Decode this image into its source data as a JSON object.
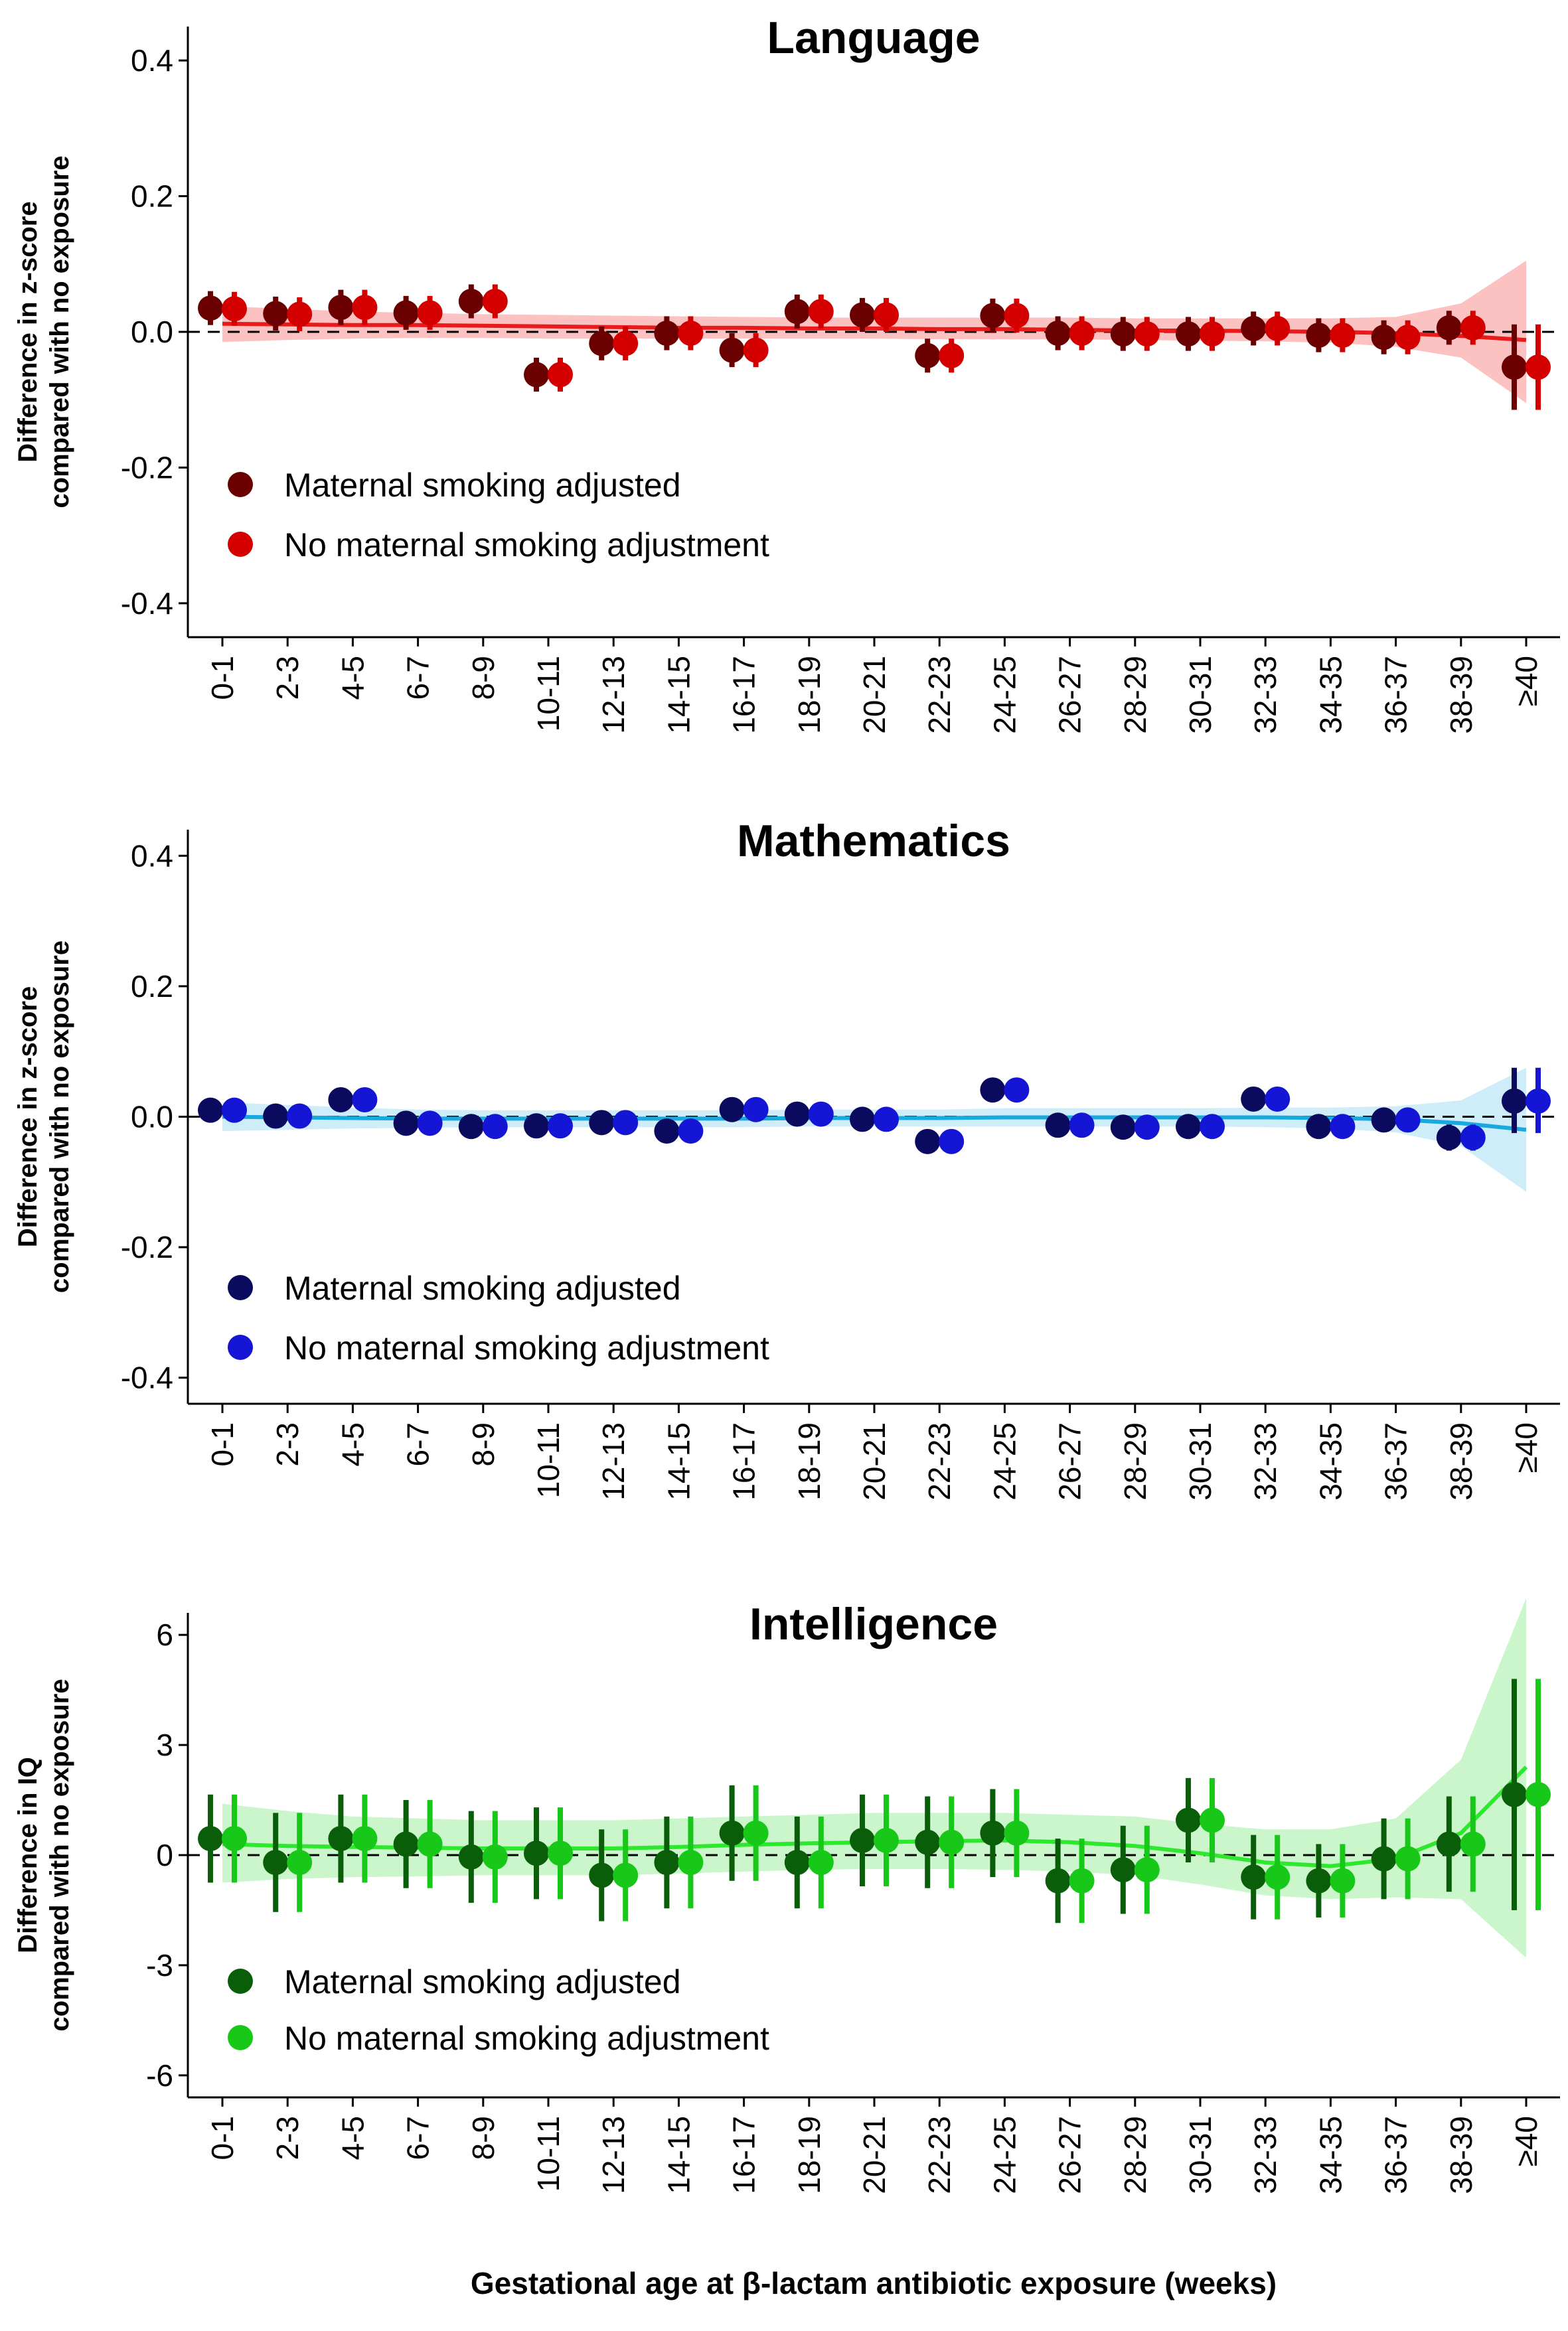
{
  "figure": {
    "xlabel": "Gestational age at β-lactam antibiotic exposure (weeks)"
  },
  "chart_data": [
    {
      "type": "scatter",
      "title": "Language",
      "ylabel_lines": [
        "Difference in z-score",
        "compared with no exposure"
      ],
      "ylim": [
        -0.45,
        0.45
      ],
      "yticks": [
        0.4,
        0.2,
        0.0,
        -0.2,
        -0.4
      ],
      "ytick_labels": [
        "0.4",
        "0.2",
        "0.0",
        "-0.2",
        "-0.4"
      ],
      "categories": [
        "0-1",
        "2-3",
        "4-5",
        "6-7",
        "8-9",
        "10-11",
        "12-13",
        "14-15",
        "16-17",
        "18-19",
        "20-21",
        "22-23",
        "24-25",
        "26-27",
        "28-29",
        "30-31",
        "32-33",
        "34-35",
        "36-37",
        "38-39",
        "≥40"
      ],
      "reference_line": 0,
      "legend_position": "bottom-left",
      "colors": {
        "adjusted": "#6b0000",
        "unadjusted": "#d40000",
        "smooth": "#e81a1a",
        "band": "#fbb7b7"
      },
      "series": [
        {
          "name": "Maternal smoking adjusted",
          "values": [
            0.035,
            0.027,
            0.036,
            0.028,
            0.045,
            -0.063,
            -0.017,
            -0.002,
            -0.027,
            0.03,
            0.025,
            -0.035,
            0.024,
            -0.002,
            -0.003,
            -0.003,
            0.005,
            -0.005,
            -0.008,
            0.006,
            -0.052
          ],
          "lower": [
            0.01,
            0.002,
            0.01,
            0.003,
            0.02,
            -0.088,
            -0.042,
            -0.027,
            -0.052,
            0.005,
            0.0,
            -0.06,
            -0.001,
            -0.027,
            -0.028,
            -0.028,
            -0.02,
            -0.03,
            -0.033,
            -0.019,
            -0.115
          ],
          "upper": [
            0.06,
            0.052,
            0.062,
            0.053,
            0.07,
            -0.038,
            0.008,
            0.023,
            -0.002,
            0.055,
            0.05,
            -0.01,
            0.049,
            0.023,
            0.022,
            0.022,
            0.03,
            0.02,
            0.017,
            0.031,
            0.011
          ]
        },
        {
          "name": "No maternal smoking adjustment",
          "values": [
            0.034,
            0.026,
            0.036,
            0.028,
            0.045,
            -0.063,
            -0.017,
            -0.002,
            -0.027,
            0.03,
            0.025,
            -0.035,
            0.024,
            -0.002,
            -0.003,
            -0.003,
            0.005,
            -0.005,
            -0.008,
            0.006,
            -0.052
          ],
          "lower": [
            0.009,
            0.001,
            0.01,
            0.003,
            0.02,
            -0.088,
            -0.042,
            -0.027,
            -0.052,
            0.005,
            0.0,
            -0.06,
            -0.001,
            -0.027,
            -0.028,
            -0.028,
            -0.02,
            -0.03,
            -0.033,
            -0.019,
            -0.115
          ],
          "upper": [
            0.059,
            0.051,
            0.062,
            0.053,
            0.07,
            -0.038,
            0.008,
            0.023,
            -0.002,
            0.055,
            0.05,
            -0.01,
            0.049,
            0.023,
            0.022,
            0.022,
            0.03,
            0.02,
            0.017,
            0.031,
            0.011
          ]
        }
      ],
      "smooth": {
        "x": [
          0,
          2,
          4,
          6,
          8,
          10,
          12,
          14,
          16,
          18,
          20,
          22,
          24,
          26,
          28,
          30,
          32,
          34,
          36,
          38,
          40
        ],
        "y": [
          0.012,
          0.011,
          0.01,
          0.01,
          0.009,
          0.008,
          0.007,
          0.006,
          0.006,
          0.005,
          0.005,
          0.004,
          0.004,
          0.003,
          0.002,
          0.002,
          0.001,
          0.0,
          -0.002,
          -0.006,
          -0.012
        ],
        "lower": [
          -0.015,
          -0.012,
          -0.01,
          -0.009,
          -0.009,
          -0.01,
          -0.01,
          -0.01,
          -0.01,
          -0.01,
          -0.01,
          -0.011,
          -0.011,
          -0.011,
          -0.012,
          -0.013,
          -0.014,
          -0.016,
          -0.022,
          -0.038,
          -0.105
        ],
        "upper": [
          0.038,
          0.034,
          0.03,
          0.028,
          0.026,
          0.025,
          0.024,
          0.023,
          0.022,
          0.021,
          0.021,
          0.021,
          0.021,
          0.021,
          0.02,
          0.02,
          0.02,
          0.02,
          0.022,
          0.042,
          0.105
        ]
      }
    },
    {
      "type": "scatter",
      "title": "Mathematics",
      "ylabel_lines": [
        "Difference in z-score",
        "compared with no exposure"
      ],
      "ylim": [
        -0.44,
        0.44
      ],
      "yticks": [
        0.4,
        0.2,
        0.0,
        -0.2,
        -0.4
      ],
      "ytick_labels": [
        "0.4",
        "0.2",
        "0.0",
        "-0.2",
        "-0.4"
      ],
      "categories": [
        "0-1",
        "2-3",
        "4-5",
        "6-7",
        "8-9",
        "10-11",
        "12-13",
        "14-15",
        "16-17",
        "18-19",
        "20-21",
        "22-23",
        "24-25",
        "26-27",
        "28-29",
        "30-31",
        "32-33",
        "34-35",
        "36-37",
        "38-39",
        "≥40"
      ],
      "reference_line": 0,
      "legend_position": "bottom-left",
      "colors": {
        "adjusted": "#0a0a5e",
        "unadjusted": "#1515d6",
        "smooth": "#19a9e0",
        "band": "#c6eaf8"
      },
      "series": [
        {
          "name": "Maternal smoking adjusted",
          "values": [
            0.01,
            0.001,
            0.026,
            -0.01,
            -0.015,
            -0.014,
            -0.009,
            -0.022,
            0.011,
            0.004,
            -0.004,
            -0.038,
            0.041,
            -0.013,
            -0.016,
            -0.015,
            0.027,
            -0.015,
            -0.005,
            -0.032,
            0.024
          ],
          "lower": [
            -0.008,
            -0.017,
            0.008,
            -0.028,
            -0.033,
            -0.032,
            -0.027,
            -0.04,
            -0.007,
            -0.014,
            -0.022,
            -0.056,
            0.023,
            -0.031,
            -0.034,
            -0.033,
            0.009,
            -0.03,
            -0.02,
            -0.052,
            -0.025
          ],
          "upper": [
            0.028,
            0.019,
            0.044,
            0.008,
            0.003,
            0.004,
            0.009,
            -0.004,
            0.029,
            0.022,
            0.014,
            -0.02,
            0.059,
            0.005,
            0.002,
            0.003,
            0.045,
            0.0,
            0.01,
            -0.012,
            0.075
          ]
        },
        {
          "name": "No maternal smoking adjustment",
          "values": [
            0.01,
            0.001,
            0.026,
            -0.01,
            -0.015,
            -0.014,
            -0.009,
            -0.022,
            0.011,
            0.004,
            -0.004,
            -0.038,
            0.041,
            -0.013,
            -0.016,
            -0.015,
            0.027,
            -0.015,
            -0.005,
            -0.032,
            0.024
          ],
          "lower": [
            -0.008,
            -0.017,
            0.008,
            -0.028,
            -0.033,
            -0.032,
            -0.027,
            -0.04,
            -0.007,
            -0.014,
            -0.022,
            -0.056,
            0.023,
            -0.031,
            -0.034,
            -0.033,
            0.009,
            -0.03,
            -0.02,
            -0.052,
            -0.025
          ],
          "upper": [
            0.028,
            0.019,
            0.044,
            0.008,
            0.003,
            0.004,
            0.009,
            -0.004,
            0.029,
            0.022,
            0.014,
            -0.02,
            0.059,
            0.005,
            0.002,
            0.003,
            0.045,
            0.0,
            0.01,
            -0.012,
            0.075
          ]
        }
      ],
      "smooth": {
        "x": [
          0,
          2,
          4,
          6,
          8,
          10,
          12,
          14,
          16,
          18,
          20,
          22,
          24,
          26,
          28,
          30,
          32,
          34,
          36,
          38,
          40
        ],
        "y": [
          0.0,
          -0.001,
          -0.002,
          -0.003,
          -0.003,
          -0.003,
          -0.003,
          -0.003,
          -0.003,
          -0.002,
          -0.002,
          -0.002,
          -0.001,
          -0.001,
          -0.001,
          -0.001,
          -0.001,
          -0.002,
          -0.004,
          -0.01,
          -0.02
        ],
        "lower": [
          -0.022,
          -0.02,
          -0.018,
          -0.017,
          -0.016,
          -0.016,
          -0.016,
          -0.016,
          -0.016,
          -0.015,
          -0.015,
          -0.015,
          -0.015,
          -0.015,
          -0.015,
          -0.015,
          -0.016,
          -0.018,
          -0.024,
          -0.045,
          -0.115
        ],
        "upper": [
          0.022,
          0.018,
          0.014,
          0.011,
          0.01,
          0.01,
          0.01,
          0.01,
          0.01,
          0.011,
          0.011,
          0.011,
          0.013,
          0.013,
          0.013,
          0.013,
          0.014,
          0.014,
          0.016,
          0.025,
          0.075
        ]
      }
    },
    {
      "type": "scatter",
      "title": "Intelligence",
      "ylabel_lines": [
        "Difference in IQ",
        "compared with no exposure"
      ],
      "ylim": [
        -6.6,
        6.6
      ],
      "yticks": [
        6,
        3,
        0,
        -3,
        -6
      ],
      "ytick_labels": [
        "6",
        "3",
        "0",
        "-3",
        "-6"
      ],
      "categories": [
        "0-1",
        "2-3",
        "4-5",
        "6-7",
        "8-9",
        "10-11",
        "12-13",
        "14-15",
        "16-17",
        "18-19",
        "20-21",
        "22-23",
        "24-25",
        "26-27",
        "28-29",
        "30-31",
        "32-33",
        "34-35",
        "36-37",
        "38-39",
        "≥40"
      ],
      "reference_line": 0,
      "legend_position": "bottom-left",
      "colors": {
        "adjusted": "#0a5e0a",
        "unadjusted": "#18c818",
        "smooth": "#2ee82e",
        "band": "#c2f5c2"
      },
      "series": [
        {
          "name": "Maternal smoking adjusted",
          "values": [
            0.45,
            -0.2,
            0.45,
            0.3,
            -0.05,
            0.05,
            -0.55,
            -0.2,
            0.6,
            -0.2,
            0.4,
            0.35,
            0.6,
            -0.7,
            -0.4,
            0.95,
            -0.6,
            -0.7,
            -0.1,
            0.3,
            1.65
          ],
          "lower": [
            -0.75,
            -1.55,
            -0.75,
            -0.9,
            -1.3,
            -1.2,
            -1.8,
            -1.45,
            -0.7,
            -1.45,
            -0.85,
            -0.9,
            -0.6,
            -1.85,
            -1.6,
            -0.2,
            -1.75,
            -1.7,
            -1.2,
            -1.0,
            -1.5
          ],
          "upper": [
            1.65,
            1.15,
            1.65,
            1.5,
            1.2,
            1.3,
            0.7,
            1.05,
            1.9,
            1.05,
            1.65,
            1.6,
            1.8,
            0.45,
            0.8,
            2.1,
            0.55,
            0.3,
            1.0,
            1.6,
            4.8
          ]
        },
        {
          "name": "No maternal smoking adjustment",
          "values": [
            0.45,
            -0.2,
            0.45,
            0.3,
            -0.05,
            0.05,
            -0.55,
            -0.2,
            0.6,
            -0.2,
            0.4,
            0.35,
            0.6,
            -0.7,
            -0.4,
            0.95,
            -0.6,
            -0.7,
            -0.1,
            0.3,
            1.65
          ],
          "lower": [
            -0.75,
            -1.55,
            -0.75,
            -0.9,
            -1.3,
            -1.2,
            -1.8,
            -1.45,
            -0.7,
            -1.45,
            -0.85,
            -0.9,
            -0.6,
            -1.85,
            -1.6,
            -0.2,
            -1.75,
            -1.7,
            -1.2,
            -1.0,
            -1.5
          ],
          "upper": [
            1.65,
            1.15,
            1.65,
            1.5,
            1.2,
            1.3,
            0.7,
            1.05,
            1.9,
            1.05,
            1.65,
            1.6,
            1.8,
            0.45,
            0.8,
            2.1,
            0.55,
            0.3,
            1.0,
            1.6,
            4.8
          ]
        }
      ],
      "smooth": {
        "x": [
          0,
          2,
          4,
          6,
          8,
          10,
          12,
          14,
          16,
          18,
          20,
          22,
          24,
          26,
          28,
          30,
          32,
          34,
          36,
          38,
          40
        ],
        "y": [
          0.3,
          0.25,
          0.22,
          0.2,
          0.18,
          0.18,
          0.18,
          0.22,
          0.28,
          0.32,
          0.35,
          0.38,
          0.4,
          0.35,
          0.25,
          0.05,
          -0.2,
          -0.3,
          -0.1,
          0.6,
          2.4
        ],
        "lower": [
          -0.75,
          -0.65,
          -0.6,
          -0.58,
          -0.55,
          -0.55,
          -0.55,
          -0.5,
          -0.45,
          -0.4,
          -0.38,
          -0.38,
          -0.4,
          -0.45,
          -0.55,
          -0.8,
          -1.1,
          -1.2,
          -1.15,
          -1.2,
          -2.8
        ],
        "upper": [
          1.4,
          1.2,
          1.05,
          1.0,
          0.95,
          0.95,
          0.95,
          1.0,
          1.05,
          1.1,
          1.15,
          1.15,
          1.15,
          1.1,
          1.05,
          0.85,
          0.7,
          0.7,
          1.0,
          2.6,
          7.0
        ]
      }
    }
  ]
}
